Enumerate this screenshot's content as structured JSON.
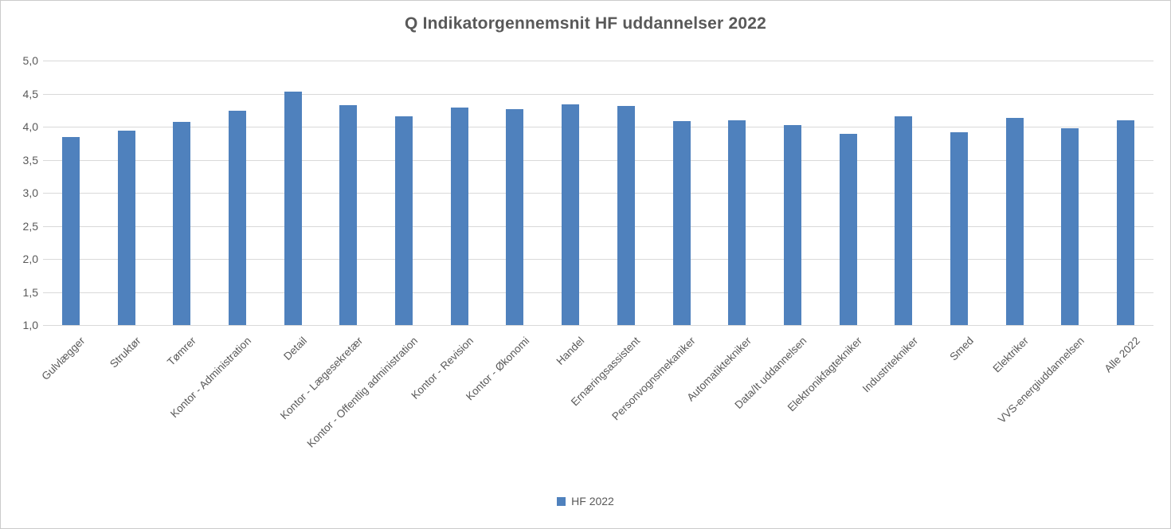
{
  "chart_data": {
    "type": "bar",
    "title": "Q Indikatorgennemsnit HF uddannelser 2022",
    "categories": [
      "Gulvlægger",
      "Struktør",
      "Tømrer",
      "Kontor - Administration",
      "Detail",
      "Kontor - Lægesekretær",
      "Kontor - Offentlig administration",
      "Kontor - Revision",
      "Kontor - Økonomi",
      "Handel",
      "Ernæringsassistent",
      "Personvognsmekaniker",
      "Automatiktekniker",
      "Data/It uddannelsen",
      "Elektronikfagtekniker",
      "Industritekniker",
      "Smed",
      "Elektriker",
      "VVS-energiuddannelsen",
      "Alle 2022"
    ],
    "series": [
      {
        "name": "HF 2022",
        "values": [
          3.84,
          3.94,
          4.07,
          4.24,
          4.53,
          4.32,
          4.16,
          4.29,
          4.26,
          4.34,
          4.31,
          4.09,
          4.1,
          4.02,
          3.89,
          4.16,
          3.92,
          4.13,
          3.98,
          4.1
        ]
      }
    ],
    "xlabel": "",
    "ylabel": "",
    "ylim": [
      1.0,
      5.0
    ],
    "ytick_step": 0.5,
    "yticks_labels": [
      "5,0",
      "4,5",
      "4,0",
      "3,5",
      "3,0",
      "2,5",
      "2,0",
      "1,5",
      "1,0"
    ],
    "grid": true,
    "legend_position": "bottom",
    "bar_color": "#4f81bd",
    "text_color": "#595959",
    "gridline_color": "#d9d9d9"
  }
}
